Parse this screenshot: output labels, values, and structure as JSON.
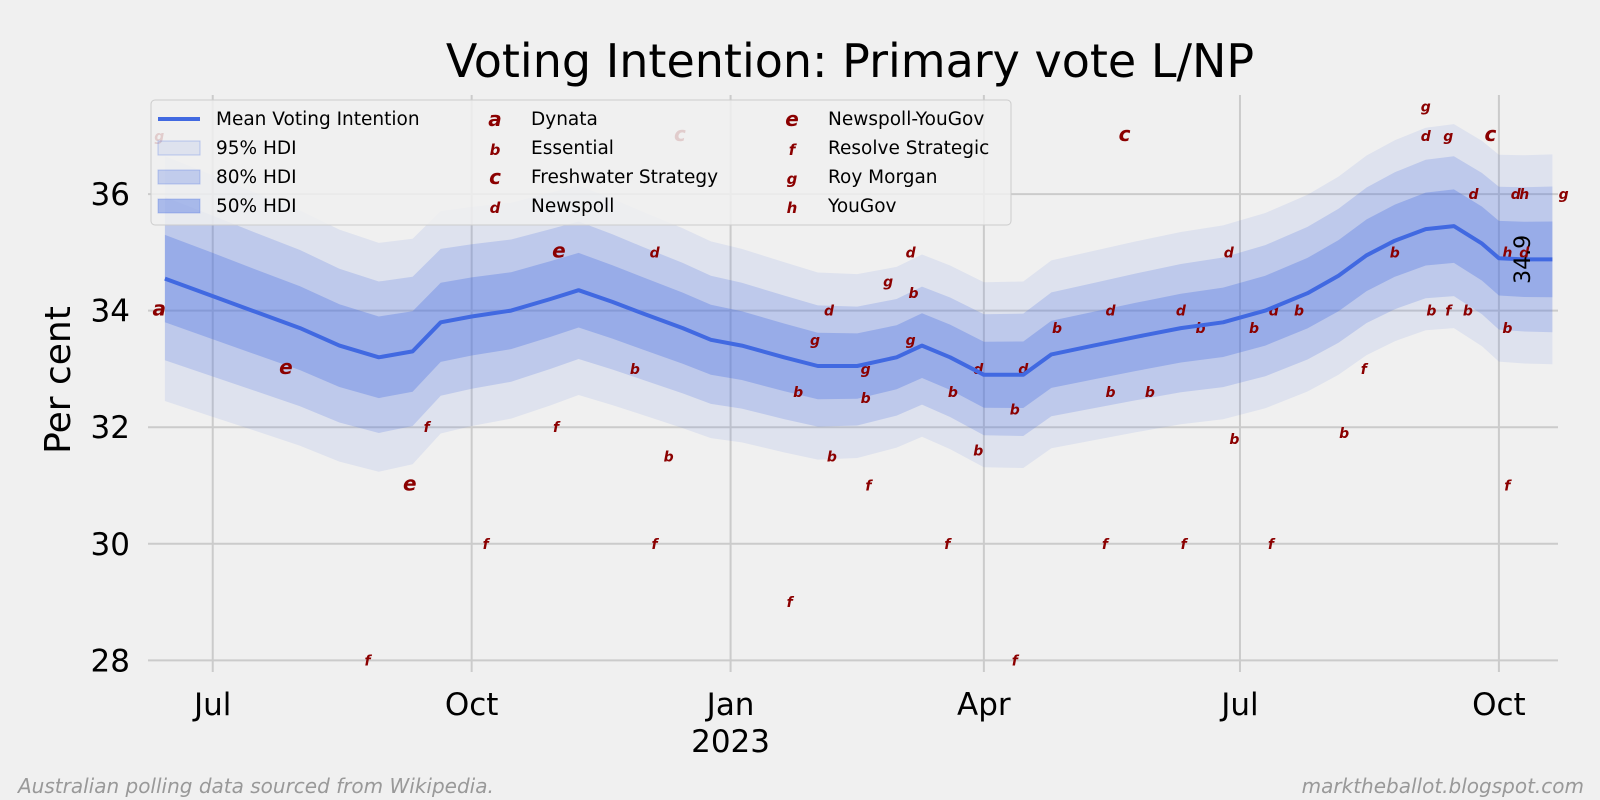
{
  "chart_data": {
    "type": "line",
    "title": "Voting Intention: Primary vote L/NP",
    "ylabel": "Per cent",
    "xlabel": "",
    "ylim": [
      27.8,
      37.7
    ],
    "yticks": [
      28,
      30,
      32,
      34,
      36
    ],
    "xlim": [
      "2022-06-08",
      "2023-10-22"
    ],
    "xticks": [
      {
        "date": "2022-07-01",
        "label": "Jul"
      },
      {
        "date": "2022-10-01",
        "label": "Oct"
      },
      {
        "date": "2023-01-01",
        "label": "Jan"
      },
      {
        "date": "2023-04-01",
        "label": "Apr"
      },
      {
        "date": "2023-07-01",
        "label": "Jul"
      },
      {
        "date": "2023-10-01",
        "label": "Oct"
      }
    ],
    "year_label": {
      "date": "2023-01-01",
      "label": "2023"
    },
    "end_label": "34.9",
    "series": [
      {
        "name": "Mean Voting Intention",
        "color": "#4169e1",
        "points": [
          [
            "2022-06-14",
            34.55
          ],
          [
            "2022-07-01",
            34.25
          ],
          [
            "2022-07-15",
            34.0
          ],
          [
            "2022-08-01",
            33.7
          ],
          [
            "2022-08-15",
            33.4
          ],
          [
            "2022-08-29",
            33.2
          ],
          [
            "2022-09-10",
            33.3
          ],
          [
            "2022-09-20",
            33.8
          ],
          [
            "2022-10-01",
            33.9
          ],
          [
            "2022-10-15",
            34.0
          ],
          [
            "2022-10-29",
            34.2
          ],
          [
            "2022-11-08",
            34.35
          ],
          [
            "2022-11-20",
            34.15
          ],
          [
            "2022-12-01",
            33.95
          ],
          [
            "2022-12-15",
            33.7
          ],
          [
            "2022-12-25",
            33.5
          ],
          [
            "2023-01-05",
            33.4
          ],
          [
            "2023-01-20",
            33.2
          ],
          [
            "2023-02-01",
            33.05
          ],
          [
            "2023-02-15",
            33.05
          ],
          [
            "2023-03-01",
            33.2
          ],
          [
            "2023-03-10",
            33.4
          ],
          [
            "2023-03-20",
            33.2
          ],
          [
            "2023-04-01",
            32.9
          ],
          [
            "2023-04-15",
            32.9
          ],
          [
            "2023-04-25",
            33.25
          ],
          [
            "2023-05-10",
            33.4
          ],
          [
            "2023-05-25",
            33.55
          ],
          [
            "2023-06-10",
            33.7
          ],
          [
            "2023-06-25",
            33.8
          ],
          [
            "2023-07-10",
            34.0
          ],
          [
            "2023-07-25",
            34.3
          ],
          [
            "2023-08-05",
            34.6
          ],
          [
            "2023-08-15",
            34.95
          ],
          [
            "2023-08-25",
            35.2
          ],
          [
            "2023-09-05",
            35.4
          ],
          [
            "2023-09-15",
            35.45
          ],
          [
            "2023-09-25",
            35.15
          ],
          [
            "2023-10-01",
            34.9
          ],
          [
            "2023-10-10",
            34.88
          ],
          [
            "2023-10-20",
            34.88
          ]
        ]
      }
    ],
    "bands": [
      {
        "name": "95% HDI",
        "halfwidth_start": 2.1,
        "halfwidth_mid": 1.55,
        "halfwidth_end": 1.8,
        "color": "#4169e1",
        "opacity": 0.1
      },
      {
        "name": "80% HDI",
        "halfwidth_start": 1.4,
        "halfwidth_mid": 1.0,
        "halfwidth_end": 1.25,
        "color": "#4169e1",
        "opacity": 0.2
      },
      {
        "name": "50% HDI",
        "halfwidth_start": 0.75,
        "halfwidth_mid": 0.55,
        "halfwidth_end": 0.65,
        "color": "#4169e1",
        "opacity": 0.3
      }
    ],
    "pollsters": [
      {
        "code": "a",
        "name": "Dynata"
      },
      {
        "code": "b",
        "name": "Essential"
      },
      {
        "code": "c",
        "name": "Freshwater Strategy"
      },
      {
        "code": "d",
        "name": "Newspoll"
      },
      {
        "code": "e",
        "name": "Newspoll-YouGov"
      },
      {
        "code": "f",
        "name": "Resolve Strategic"
      },
      {
        "code": "g",
        "name": "Roy Morgan"
      },
      {
        "code": "h",
        "name": "YouGov"
      }
    ],
    "polls": [
      [
        "a",
        "2022-06-12",
        34.0
      ],
      [
        "g",
        "2022-06-12",
        37.0
      ],
      [
        "e",
        "2022-07-27",
        33.0
      ],
      [
        "f",
        "2022-08-25",
        28.0
      ],
      [
        "e",
        "2022-09-09",
        31.0
      ],
      [
        "f",
        "2022-09-15",
        32.0
      ],
      [
        "f",
        "2022-10-06",
        30.0
      ],
      [
        "f",
        "2022-10-31",
        32.0
      ],
      [
        "e",
        "2022-11-01",
        35.0
      ],
      [
        "b",
        "2022-11-28",
        33.0
      ],
      [
        "d",
        "2022-12-05",
        35.0
      ],
      [
        "b",
        "2022-12-10",
        31.5
      ],
      [
        "c",
        "2022-12-14",
        37.0
      ],
      [
        "f",
        "2022-12-05",
        30.0
      ],
      [
        "f",
        "2023-01-22",
        29.0
      ],
      [
        "b",
        "2023-01-25",
        32.6
      ],
      [
        "g",
        "2023-01-31",
        33.5
      ],
      [
        "d",
        "2023-02-05",
        34.0
      ],
      [
        "b",
        "2023-02-06",
        31.5
      ],
      [
        "b",
        "2023-02-18",
        32.5
      ],
      [
        "g",
        "2023-02-18",
        33.0
      ],
      [
        "f",
        "2023-02-19",
        31.0
      ],
      [
        "g",
        "2023-02-26",
        34.5
      ],
      [
        "d",
        "2023-03-06",
        35.0
      ],
      [
        "b",
        "2023-03-07",
        34.3
      ],
      [
        "g",
        "2023-03-06",
        33.5
      ],
      [
        "b",
        "2023-03-21",
        32.6
      ],
      [
        "f",
        "2023-03-19",
        30.0
      ],
      [
        "b",
        "2023-03-30",
        31.6
      ],
      [
        "d",
        "2023-03-30",
        33.0
      ],
      [
        "f",
        "2023-04-12",
        28.0
      ],
      [
        "b",
        "2023-04-12",
        32.3
      ],
      [
        "d",
        "2023-04-15",
        33.0
      ],
      [
        "b",
        "2023-04-27",
        33.7
      ],
      [
        "f",
        "2023-05-14",
        30.0
      ],
      [
        "b",
        "2023-05-16",
        32.6
      ],
      [
        "d",
        "2023-05-16",
        34.0
      ],
      [
        "c",
        "2023-05-21",
        37.0
      ],
      [
        "b",
        "2023-05-30",
        32.6
      ],
      [
        "f",
        "2023-06-11",
        30.0
      ],
      [
        "d",
        "2023-06-10",
        34.0
      ],
      [
        "b",
        "2023-06-17",
        33.7
      ],
      [
        "d",
        "2023-06-27",
        35.0
      ],
      [
        "b",
        "2023-06-29",
        31.8
      ],
      [
        "b",
        "2023-07-06",
        33.7
      ],
      [
        "f",
        "2023-07-12",
        30.0
      ],
      [
        "d",
        "2023-07-13",
        34.0
      ],
      [
        "b",
        "2023-07-22",
        34.0
      ],
      [
        "b",
        "2023-08-07",
        31.9
      ],
      [
        "f",
        "2023-08-14",
        33.0
      ],
      [
        "b",
        "2023-08-25",
        35.0
      ],
      [
        "g",
        "2023-09-05",
        37.5
      ],
      [
        "d",
        "2023-09-05",
        37.0
      ],
      [
        "b",
        "2023-09-07",
        34.0
      ],
      [
        "g",
        "2023-09-13",
        37.0
      ],
      [
        "f",
        "2023-09-13",
        34.0
      ],
      [
        "b",
        "2023-09-20",
        34.0
      ],
      [
        "d",
        "2023-09-22",
        36.0
      ],
      [
        "c",
        "2023-09-28",
        37.0
      ],
      [
        "b",
        "2023-10-04",
        33.7
      ],
      [
        "f",
        "2023-10-04",
        31.0
      ],
      [
        "h",
        "2023-10-04",
        35.0
      ],
      [
        "d",
        "2023-10-07",
        36.0
      ],
      [
        "h",
        "2023-10-10",
        36.0
      ],
      [
        "d",
        "2023-10-10",
        35.0
      ],
      [
        "g",
        "2023-10-24",
        36.0
      ]
    ]
  },
  "footer": {
    "left": "Australian polling data sourced from Wikipedia.",
    "right": "marktheballot.blogspot.com"
  }
}
